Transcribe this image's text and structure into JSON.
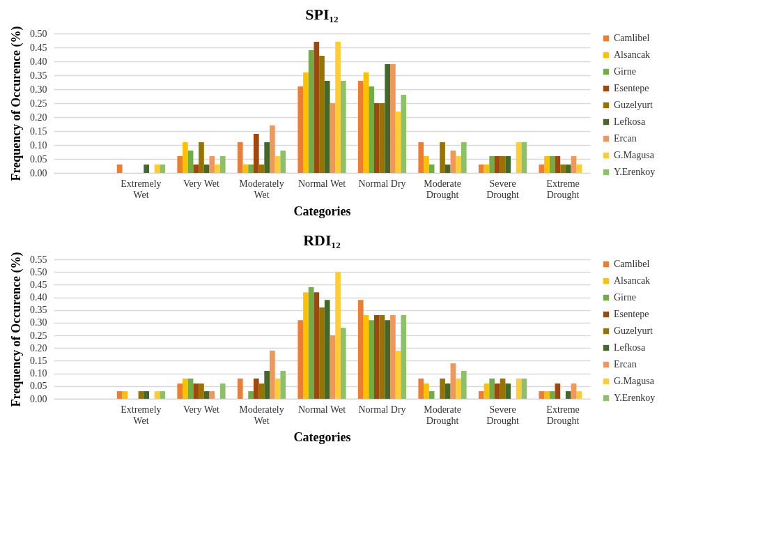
{
  "chart_data": [
    {
      "type": "bar",
      "title": "SPI₁₂",
      "xlabel": "Categories",
      "ylabel": "Frequency of Occurence (%)",
      "categories": [
        null,
        "Extremely Wet",
        "Very Wet",
        "Moderately Wet",
        "Normal Wet",
        "Normal Dry",
        "Moderate Drought",
        "Severe Drought",
        "Extreme Drought"
      ],
      "series": [
        {
          "name": "Camlibel",
          "color": "#ed7d31",
          "values": [
            null,
            0.03,
            0.06,
            0.11,
            0.31,
            0.33,
            0.11,
            0.03,
            0.03
          ]
        },
        {
          "name": "Alsancak",
          "color": "#ffc000",
          "values": [
            null,
            0,
            0.11,
            0.03,
            0.36,
            0.36,
            0.06,
            0.03,
            0.06
          ]
        },
        {
          "name": "Girne",
          "color": "#70ad47",
          "values": [
            null,
            0,
            0.08,
            0.03,
            0.44,
            0.31,
            0.03,
            0.06,
            0.06
          ]
        },
        {
          "name": "Esentepe",
          "color": "#9e480e",
          "values": [
            null,
            0,
            0.03,
            0.14,
            0.47,
            0.25,
            0,
            0.06,
            0.06
          ]
        },
        {
          "name": "Guzelyurt",
          "color": "#997300",
          "values": [
            null,
            0,
            0.11,
            0.03,
            0.42,
            0.25,
            0.11,
            0.06,
            0.03
          ]
        },
        {
          "name": "Lefkosa",
          "color": "#43682b",
          "values": [
            null,
            0.03,
            0.03,
            0.11,
            0.33,
            0.39,
            0.03,
            0.06,
            0.03
          ]
        },
        {
          "name": "Ercan",
          "color": "#f1975a",
          "values": [
            null,
            0,
            0.06,
            0.17,
            0.25,
            0.39,
            0.08,
            0,
            0.06
          ]
        },
        {
          "name": "G.Magusa",
          "color": "#ffcd33",
          "values": [
            null,
            0.03,
            0.03,
            0.06,
            0.47,
            0.22,
            0.06,
            0.11,
            0.03
          ]
        },
        {
          "name": "Y.Erenkoy",
          "color": "#8cc168",
          "values": [
            null,
            0.03,
            0.06,
            0.08,
            0.33,
            0.28,
            0.11,
            0.11,
            0
          ]
        }
      ],
      "ylim": [
        0,
        0.5
      ],
      "yticks": [
        {
          "value": 0,
          "label": "0.00"
        },
        {
          "value": 0.05,
          "label": "0.05"
        },
        {
          "value": 0.1,
          "label": "0.10"
        },
        {
          "value": 0.15,
          "label": "0.15"
        },
        {
          "value": 0.2,
          "label": "0.20"
        },
        {
          "value": 0.25,
          "label": "0.25"
        },
        {
          "value": 0.3,
          "label": "0.30"
        },
        {
          "value": 0.35,
          "label": "0.35"
        },
        {
          "value": 0.4,
          "label": "0.40"
        },
        {
          "value": 0.45,
          "label": "0.45"
        },
        {
          "value": 0.5,
          "label": "0.50"
        }
      ],
      "grid": "y",
      "legend": "right"
    },
    {
      "type": "bar",
      "title": "RDI₁₂",
      "xlabel": "Categories",
      "ylabel": "Frequency of Occurence (%)",
      "categories": [
        null,
        "Extremely Wet",
        "Very Wet",
        "Moderately Wet",
        "Normal Wet",
        "Normal Dry",
        "Moderate Drought",
        "Severe Drought",
        "Extreme Drought"
      ],
      "series": [
        {
          "name": "Camlibel",
          "color": "#ed7d31",
          "values": [
            null,
            0.03,
            0.06,
            0.08,
            0.31,
            0.39,
            0.08,
            0.03,
            0.03
          ]
        },
        {
          "name": "Alsancak",
          "color": "#ffc000",
          "values": [
            null,
            0.03,
            0.08,
            0,
            0.42,
            0.33,
            0.06,
            0.06,
            0.03
          ]
        },
        {
          "name": "Girne",
          "color": "#70ad47",
          "values": [
            null,
            0,
            0.08,
            0.03,
            0.44,
            0.31,
            0.03,
            0.08,
            0.03
          ]
        },
        {
          "name": "Esentepe",
          "color": "#9e480e",
          "values": [
            null,
            0,
            0.06,
            0.08,
            0.42,
            0.33,
            0,
            0.06,
            0.06
          ]
        },
        {
          "name": "Guzelyurt",
          "color": "#997300",
          "values": [
            null,
            0.03,
            0.06,
            0.06,
            0.36,
            0.33,
            0.08,
            0.08,
            0
          ]
        },
        {
          "name": "Lefkosa",
          "color": "#43682b",
          "values": [
            null,
            0.03,
            0.03,
            0.11,
            0.39,
            0.31,
            0.06,
            0.06,
            0.03
          ]
        },
        {
          "name": "Ercan",
          "color": "#f1975a",
          "values": [
            null,
            0,
            0.03,
            0.19,
            0.25,
            0.33,
            0.14,
            0,
            0.06
          ]
        },
        {
          "name": "G.Magusa",
          "color": "#ffcd33",
          "values": [
            null,
            0.03,
            0,
            0.08,
            0.5,
            0.19,
            0.08,
            0.08,
            0.03
          ]
        },
        {
          "name": "Y.Erenkoy",
          "color": "#8cc168",
          "values": [
            null,
            0.03,
            0.06,
            0.11,
            0.28,
            0.33,
            0.11,
            0.08,
            0
          ]
        }
      ],
      "ylim": [
        0,
        0.55
      ],
      "yticks": [
        {
          "value": 0,
          "label": "0.00"
        },
        {
          "value": 0.05,
          "label": "0.05"
        },
        {
          "value": 0.1,
          "label": "0.10"
        },
        {
          "value": 0.15,
          "label": "0.15"
        },
        {
          "value": 0.2,
          "label": "0.20"
        },
        {
          "value": 0.25,
          "label": "0.25"
        },
        {
          "value": 0.3,
          "label": "0.30"
        },
        {
          "value": 0.35,
          "label": "0.35"
        },
        {
          "value": 0.4,
          "label": "0.40"
        },
        {
          "value": 0.45,
          "label": "0.45"
        },
        {
          "value": 0.5,
          "label": "0.50"
        },
        {
          "value": 0.55,
          "label": "0.55"
        }
      ],
      "grid": "y",
      "legend": "right"
    }
  ]
}
